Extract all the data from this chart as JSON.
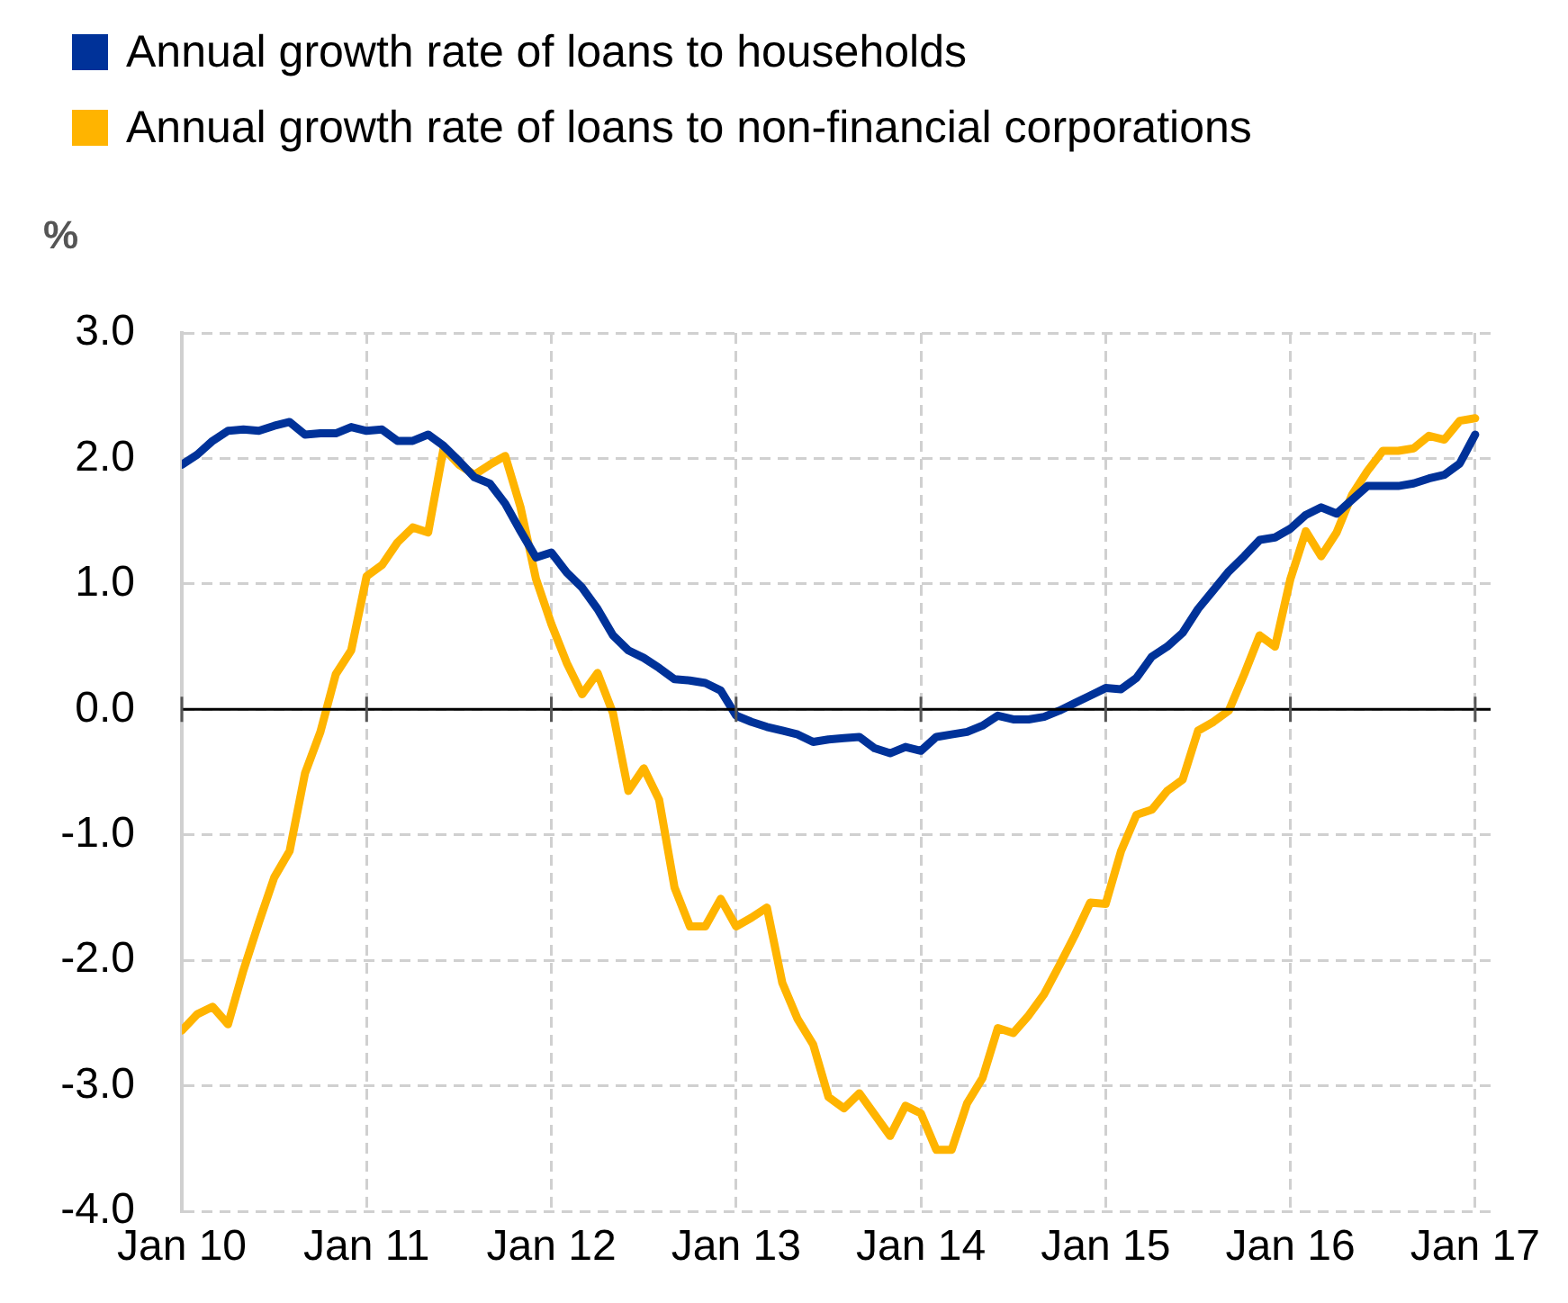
{
  "chart_data": {
    "type": "line",
    "ylabel": "%",
    "legend": "top left",
    "grid": true,
    "marker": "none",
    "line_style": "solid",
    "x": [
      "2010-01",
      "2010-02",
      "2010-03",
      "2010-04",
      "2010-05",
      "2010-06",
      "2010-07",
      "2010-08",
      "2010-09",
      "2010-10",
      "2010-11",
      "2010-12",
      "2011-01",
      "2011-02",
      "2011-03",
      "2011-04",
      "2011-05",
      "2011-06",
      "2011-07",
      "2011-08",
      "2011-09",
      "2011-10",
      "2011-11",
      "2011-12",
      "2012-01",
      "2012-02",
      "2012-03",
      "2012-04",
      "2012-05",
      "2012-06",
      "2012-07",
      "2012-08",
      "2012-09",
      "2012-10",
      "2012-11",
      "2012-12",
      "2013-01",
      "2013-02",
      "2013-03",
      "2013-04",
      "2013-05",
      "2013-06",
      "2013-07",
      "2013-08",
      "2013-09",
      "2013-10",
      "2013-11",
      "2013-12",
      "2014-01",
      "2014-02",
      "2014-03",
      "2014-04",
      "2014-05",
      "2014-06",
      "2014-07",
      "2014-08",
      "2014-09",
      "2014-10",
      "2014-11",
      "2014-12",
      "2015-01",
      "2015-02",
      "2015-03",
      "2015-04",
      "2015-05",
      "2015-06",
      "2015-07",
      "2015-08",
      "2015-09",
      "2015-10",
      "2015-11",
      "2015-12",
      "2016-01",
      "2016-02",
      "2016-03",
      "2016-04",
      "2016-05",
      "2016-06",
      "2016-07",
      "2016-08",
      "2016-09",
      "2016-10",
      "2016-11",
      "2016-12",
      "2017-01"
    ],
    "xlim": [
      "2010-01",
      "2017-02"
    ],
    "xticks": [
      {
        "value": "2010-01",
        "label": "Jan 10"
      },
      {
        "value": "2011-01",
        "label": "Jan 11"
      },
      {
        "value": "2012-01",
        "label": "Jan 12"
      },
      {
        "value": "2013-01",
        "label": "Jan 13"
      },
      {
        "value": "2014-01",
        "label": "Jan 14"
      },
      {
        "value": "2015-01",
        "label": "Jan 15"
      },
      {
        "value": "2016-01",
        "label": "Jan 16"
      },
      {
        "value": "2017-01",
        "label": "Jan 17"
      }
    ],
    "ylim": [
      -4,
      3
    ],
    "yticks": [
      {
        "value": -4,
        "label": "-4.0"
      },
      {
        "value": -3,
        "label": "-3.0"
      },
      {
        "value": -2,
        "label": "-2.0"
      },
      {
        "value": -1,
        "label": "-1.0"
      },
      {
        "value": 0,
        "label": "0.0"
      },
      {
        "value": 1,
        "label": "1.0"
      },
      {
        "value": 2,
        "label": "2.0"
      },
      {
        "value": 3,
        "label": "3.0"
      }
    ],
    "ref_lines": [
      {
        "axis": "y",
        "value": 0,
        "color": "#000000"
      }
    ],
    "series": [
      {
        "name": "Annual growth rate of loans to households",
        "color": "#003299",
        "values": [
          1.95,
          2.03,
          2.14,
          2.22,
          2.23,
          2.22,
          2.26,
          2.29,
          2.19,
          2.2,
          2.2,
          2.25,
          2.22,
          2.23,
          2.14,
          2.14,
          2.19,
          2.1,
          1.98,
          1.85,
          1.8,
          1.64,
          1.42,
          1.21,
          1.25,
          1.09,
          0.97,
          0.8,
          0.59,
          0.47,
          0.41,
          0.33,
          0.24,
          0.23,
          0.21,
          0.15,
          -0.05,
          -0.1,
          -0.14,
          -0.17,
          -0.2,
          -0.26,
          -0.24,
          -0.23,
          -0.22,
          -0.31,
          -0.35,
          -0.3,
          -0.33,
          -0.22,
          -0.2,
          -0.18,
          -0.13,
          -0.05,
          -0.08,
          -0.08,
          -0.06,
          -0.01,
          0.05,
          0.11,
          0.17,
          0.16,
          0.25,
          0.42,
          0.5,
          0.61,
          0.8,
          0.95,
          1.1,
          1.22,
          1.35,
          1.37,
          1.44,
          1.55,
          1.61,
          1.56,
          1.67,
          1.78,
          1.78,
          1.78,
          1.8,
          1.84,
          1.87,
          1.96,
          2.19
        ]
      },
      {
        "name": "Annual growth rate of loans to non-financial corporations",
        "color": "#ffb400",
        "values": [
          -2.56,
          -2.43,
          -2.37,
          -2.51,
          -2.08,
          -1.7,
          -1.34,
          -1.13,
          -0.51,
          -0.18,
          0.28,
          0.47,
          1.06,
          1.15,
          1.33,
          1.45,
          1.41,
          2.08,
          1.95,
          1.87,
          1.95,
          2.02,
          1.61,
          1.04,
          0.68,
          0.37,
          0.12,
          0.29,
          -0.03,
          -0.65,
          -0.47,
          -0.72,
          -1.42,
          -1.73,
          -1.73,
          -1.51,
          -1.73,
          -1.66,
          -1.58,
          -2.18,
          -2.47,
          -2.67,
          -3.09,
          -3.18,
          -3.06,
          -3.23,
          -3.4,
          -3.16,
          -3.22,
          -3.51,
          -3.51,
          -3.14,
          -2.94,
          -2.54,
          -2.58,
          -2.44,
          -2.27,
          -2.04,
          -1.8,
          -1.54,
          -1.55,
          -1.13,
          -0.84,
          -0.8,
          -0.65,
          -0.56,
          -0.17,
          -0.1,
          -0.01,
          0.28,
          0.59,
          0.5,
          1.04,
          1.42,
          1.22,
          1.41,
          1.71,
          1.9,
          2.06,
          2.06,
          2.08,
          2.18,
          2.15,
          2.3,
          2.32
        ]
      }
    ]
  }
}
